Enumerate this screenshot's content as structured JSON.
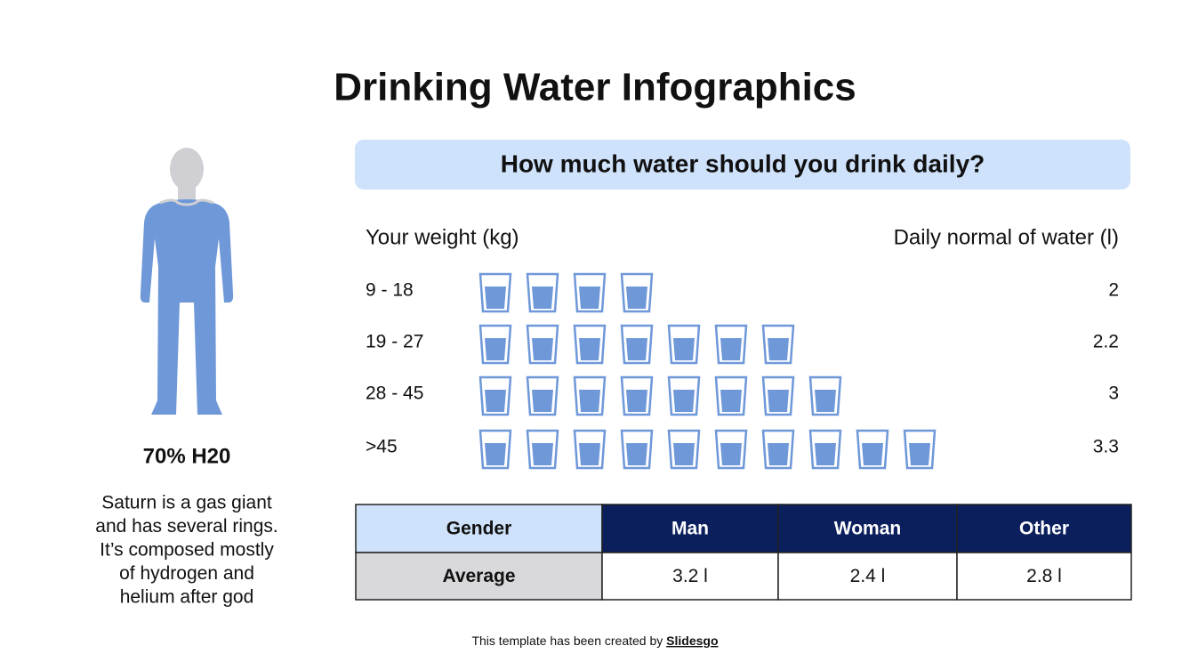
{
  "title": "Drinking Water Infographics",
  "figure": {
    "label": "70% H20",
    "text_lines": [
      "Saturn is a gas giant",
      "and has several rings.",
      "It’s composed mostly",
      "of hydrogen and",
      "helium after god"
    ]
  },
  "panel": {
    "question": "How much water should you drink daily?",
    "weight_header": "Your weight (kg)",
    "water_header": "Daily normal of water (l)",
    "rows": [
      {
        "weight": "9 - 18",
        "glasses": 4,
        "water": "2"
      },
      {
        "weight": "19 - 27",
        "glasses": 7,
        "water": "2.2"
      },
      {
        "weight": "28 - 45",
        "glasses": 8,
        "water": "3"
      },
      {
        "weight": ">45",
        "glasses": 10,
        "water": "3.3"
      }
    ]
  },
  "table": {
    "header": [
      "Gender",
      "Man",
      "Woman",
      "Other"
    ],
    "rows": [
      [
        "Average",
        "3.2 l",
        "2.4 l",
        "2.8 l"
      ]
    ]
  },
  "footer": {
    "text": "This template has been created by",
    "link": "Slidesgo"
  }
}
